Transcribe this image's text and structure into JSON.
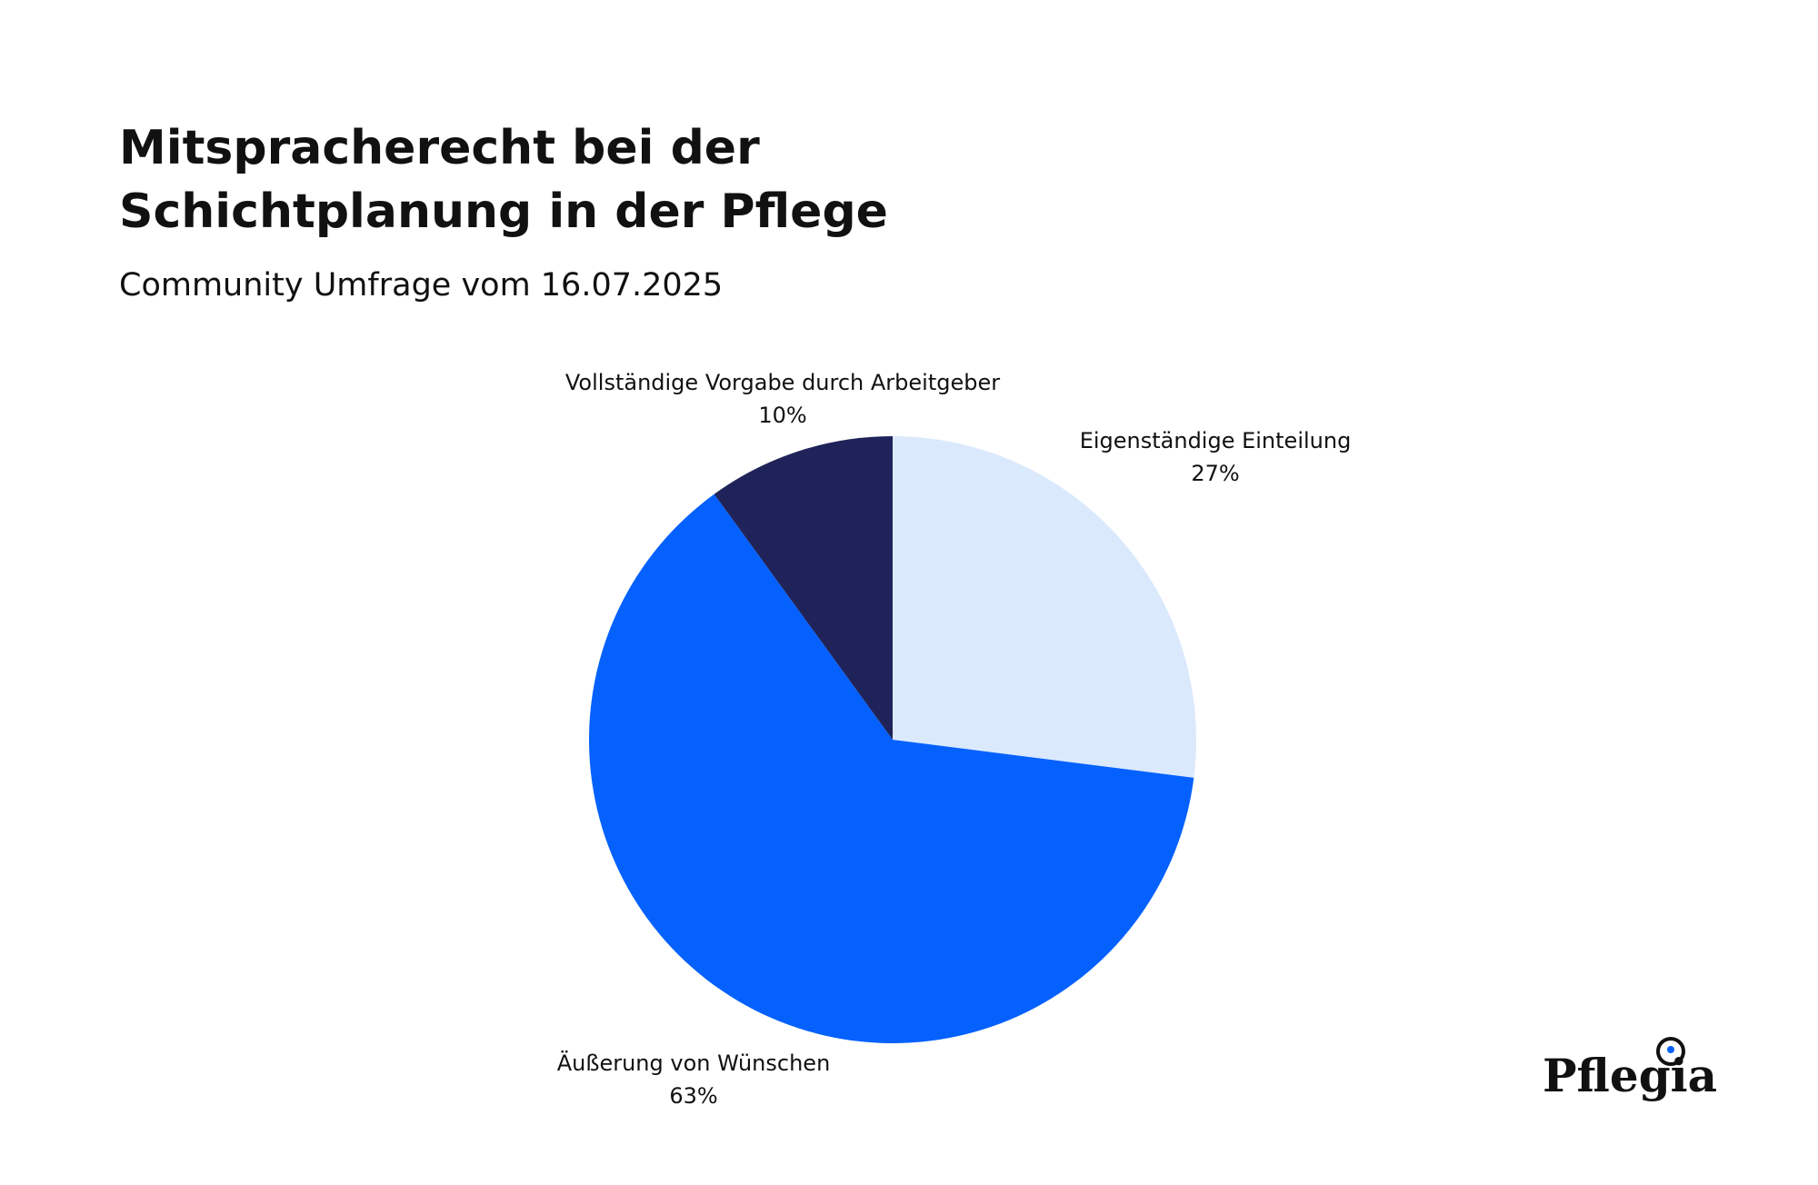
{
  "chart_data": {
    "type": "pie",
    "title": [
      "Mitspracherecht bei der",
      "Schichtplanung in der Pflege"
    ],
    "subtitle": "Community Umfrage vom 16.07.2025",
    "categories": [
      "Eigenständige Einteilung",
      "Äußerung von Wünschen",
      "Vollständige Vorgabe durch Arbeitgeber"
    ],
    "values": [
      27,
      63,
      10
    ],
    "value_labels": [
      "27%",
      "63%",
      "10%"
    ],
    "colors": [
      "#dbe9fd",
      "#0561fe",
      "#1f2359"
    ],
    "logo": "Pflegia"
  }
}
